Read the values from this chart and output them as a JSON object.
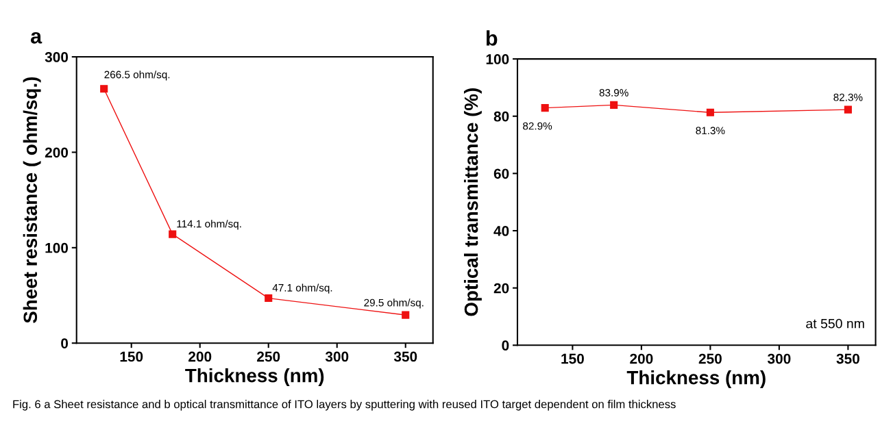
{
  "chart_data": [
    {
      "type": "line",
      "title": "a",
      "xlabel": "Thickness (nm)",
      "ylabel": "Sheet resistance ( ohm/sq.)",
      "x": [
        130,
        180,
        250,
        350
      ],
      "series": [
        {
          "color": "#ee1111",
          "values": [
            266.5,
            114.1,
            47.1,
            29.5
          ],
          "value_labels": [
            "266.5 ohm/sq.",
            "114.1 ohm/sq.",
            "47.1 ohm/sq.",
            "29.5 ohm/sq."
          ]
        }
      ],
      "xlim": [
        110,
        370
      ],
      "ylim": [
        0,
        300
      ],
      "xticks": [
        150,
        200,
        250,
        300,
        350
      ],
      "yticks": [
        0,
        100,
        200,
        300
      ],
      "marker": "square",
      "grid": false,
      "annotations": [
        "Fig. 6 a Sheet resistance and b optical transmittance of ITO layers by sputtering with reused ITO target dependent on film thickness"
      ]
    },
    {
      "type": "line",
      "title": "b",
      "xlabel": "Thickness (nm)",
      "ylabel": "Optical transmittance (%)",
      "x": [
        130,
        180,
        250,
        350
      ],
      "series": [
        {
          "color": "#ee1111",
          "values": [
            82.9,
            83.9,
            81.3,
            82.3
          ],
          "value_labels": [
            "82.9%",
            "83.9%",
            "81.3%",
            "82.3%"
          ]
        }
      ],
      "xlim": [
        110,
        370
      ],
      "ylim": [
        0,
        100
      ],
      "xticks": [
        150,
        200,
        250,
        300,
        350
      ],
      "yticks": [
        0,
        20,
        40,
        60,
        80,
        100
      ],
      "marker": "square",
      "grid": false,
      "annotations": [
        "at 550 nm"
      ]
    }
  ]
}
